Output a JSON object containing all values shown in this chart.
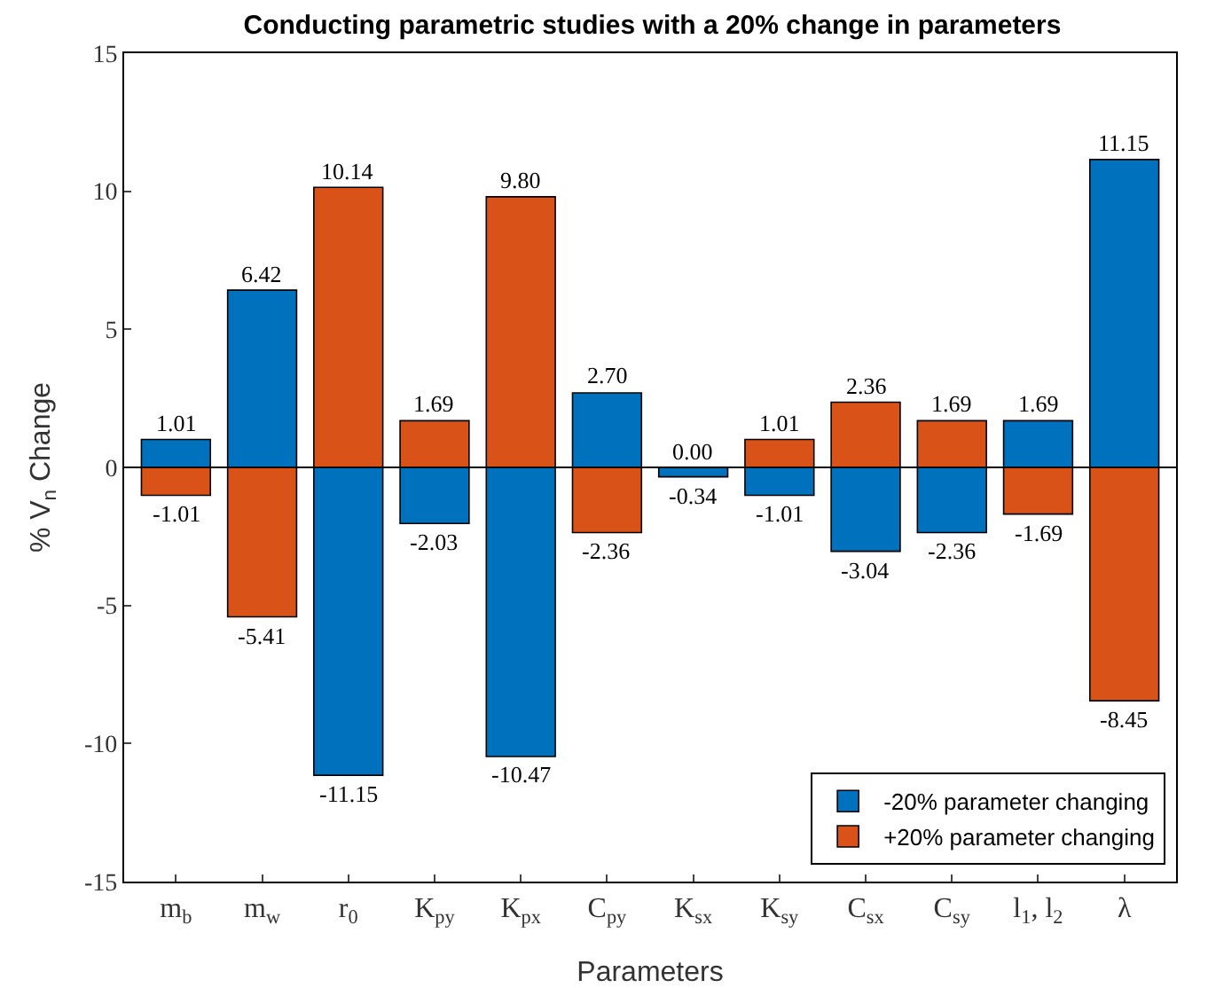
{
  "chart_data": {
    "type": "bar",
    "title": "Conducting parametric studies with a 20% change in parameters",
    "xlabel": "Parameters",
    "ylabel": "% V$_{n}$ Change",
    "categories": [
      "m$_{b}$",
      "m$_{w}$",
      "r$_{0}$",
      "K$_{py}$",
      "K$_{px}$",
      "C$_{py}$",
      "K$_{sx}$",
      "K$_{sy}$",
      "C$_{sx}$",
      "C$_{sy}$",
      "l$_{1}$, l$_{2}$",
      "λ"
    ],
    "series": [
      {
        "name": "-20% parameter changing",
        "color": "#0072bd",
        "values": [
          1.01,
          6.42,
          -11.15,
          -2.03,
          -10.47,
          2.7,
          -0.34,
          -1.01,
          -3.04,
          -2.36,
          1.69,
          11.15
        ],
        "value_labels": [
          "1.01",
          "6.42",
          "-11.15",
          "-2.03",
          "-10.47",
          "2.70",
          "-0.34",
          "-1.01",
          "-3.04",
          "-2.36",
          "1.69",
          "11.15"
        ]
      },
      {
        "name": "+20% parameter changing",
        "color": "#d95319",
        "values": [
          -1.01,
          -5.41,
          10.14,
          1.69,
          9.8,
          -2.36,
          0.0,
          1.01,
          2.36,
          1.69,
          -1.69,
          -8.45
        ],
        "value_labels": [
          "-1.01",
          "-5.41",
          "10.14",
          "1.69",
          "9.80",
          "-2.36",
          "0.00",
          "1.01",
          "2.36",
          "1.69",
          "-1.69",
          "-8.45"
        ]
      }
    ],
    "ylim": [
      -15,
      15
    ],
    "yticks": [
      -15,
      -10,
      -5,
      0,
      5,
      10,
      15
    ],
    "stacked": true,
    "ref_lines": [
      {
        "axis": "y",
        "value": 0,
        "color": "#000000"
      }
    ],
    "legend": "bottom right"
  }
}
